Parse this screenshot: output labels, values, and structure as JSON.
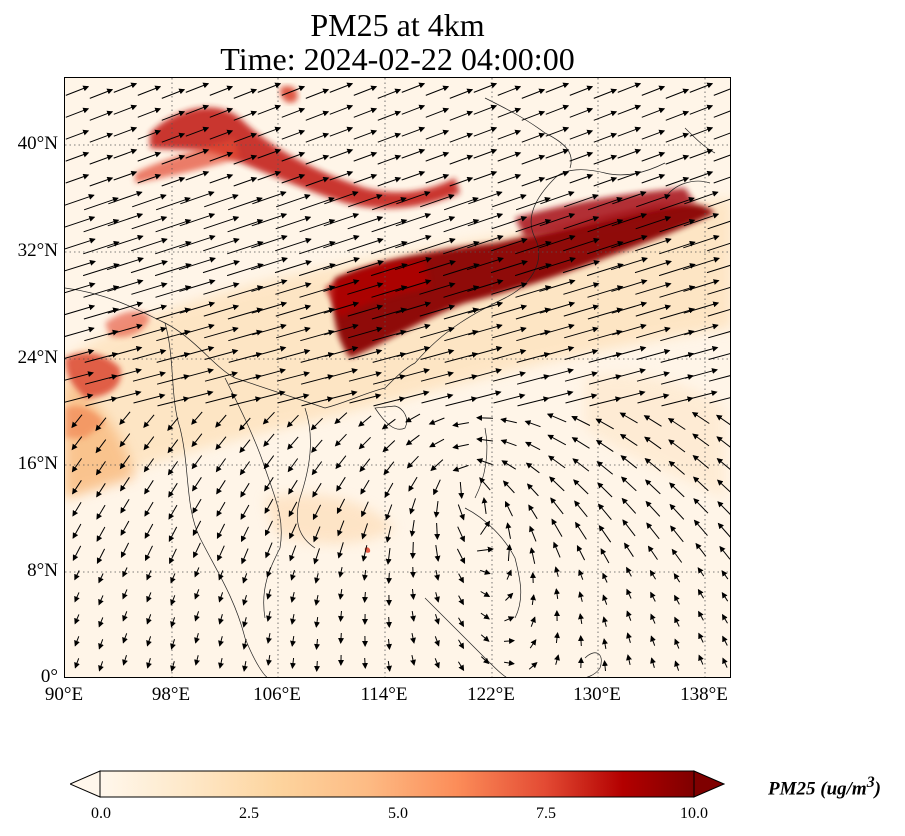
{
  "title": {
    "line1": "PM25 at 4km",
    "line2": "Time: 2024-02-22 04:00:00"
  },
  "map": {
    "lon_range": [
      90,
      140
    ],
    "lat_range": [
      0,
      45
    ],
    "lat_ticks": [
      "40°N",
      "32°N",
      "24°N",
      "16°N",
      "8°N",
      "0°"
    ],
    "lon_ticks": [
      "90°E",
      "98°E",
      "106°E",
      "114°E",
      "122°E",
      "130°E",
      "138°E"
    ],
    "gridlines": "dotted"
  },
  "colorbar": {
    "label": "PM25 (ug/m",
    "label_sup": "3",
    "label_close": ")",
    "ticks": [
      "0.0",
      "2.5",
      "5.0",
      "7.5",
      "10.0"
    ],
    "range": [
      0,
      10
    ],
    "extend": "both",
    "colormap": "OrRd"
  },
  "colors": {
    "low": "#fff7ec",
    "mid": "#fdb863",
    "high": "#d7301f",
    "max": "#7f0000",
    "background": "#ffffff"
  }
}
